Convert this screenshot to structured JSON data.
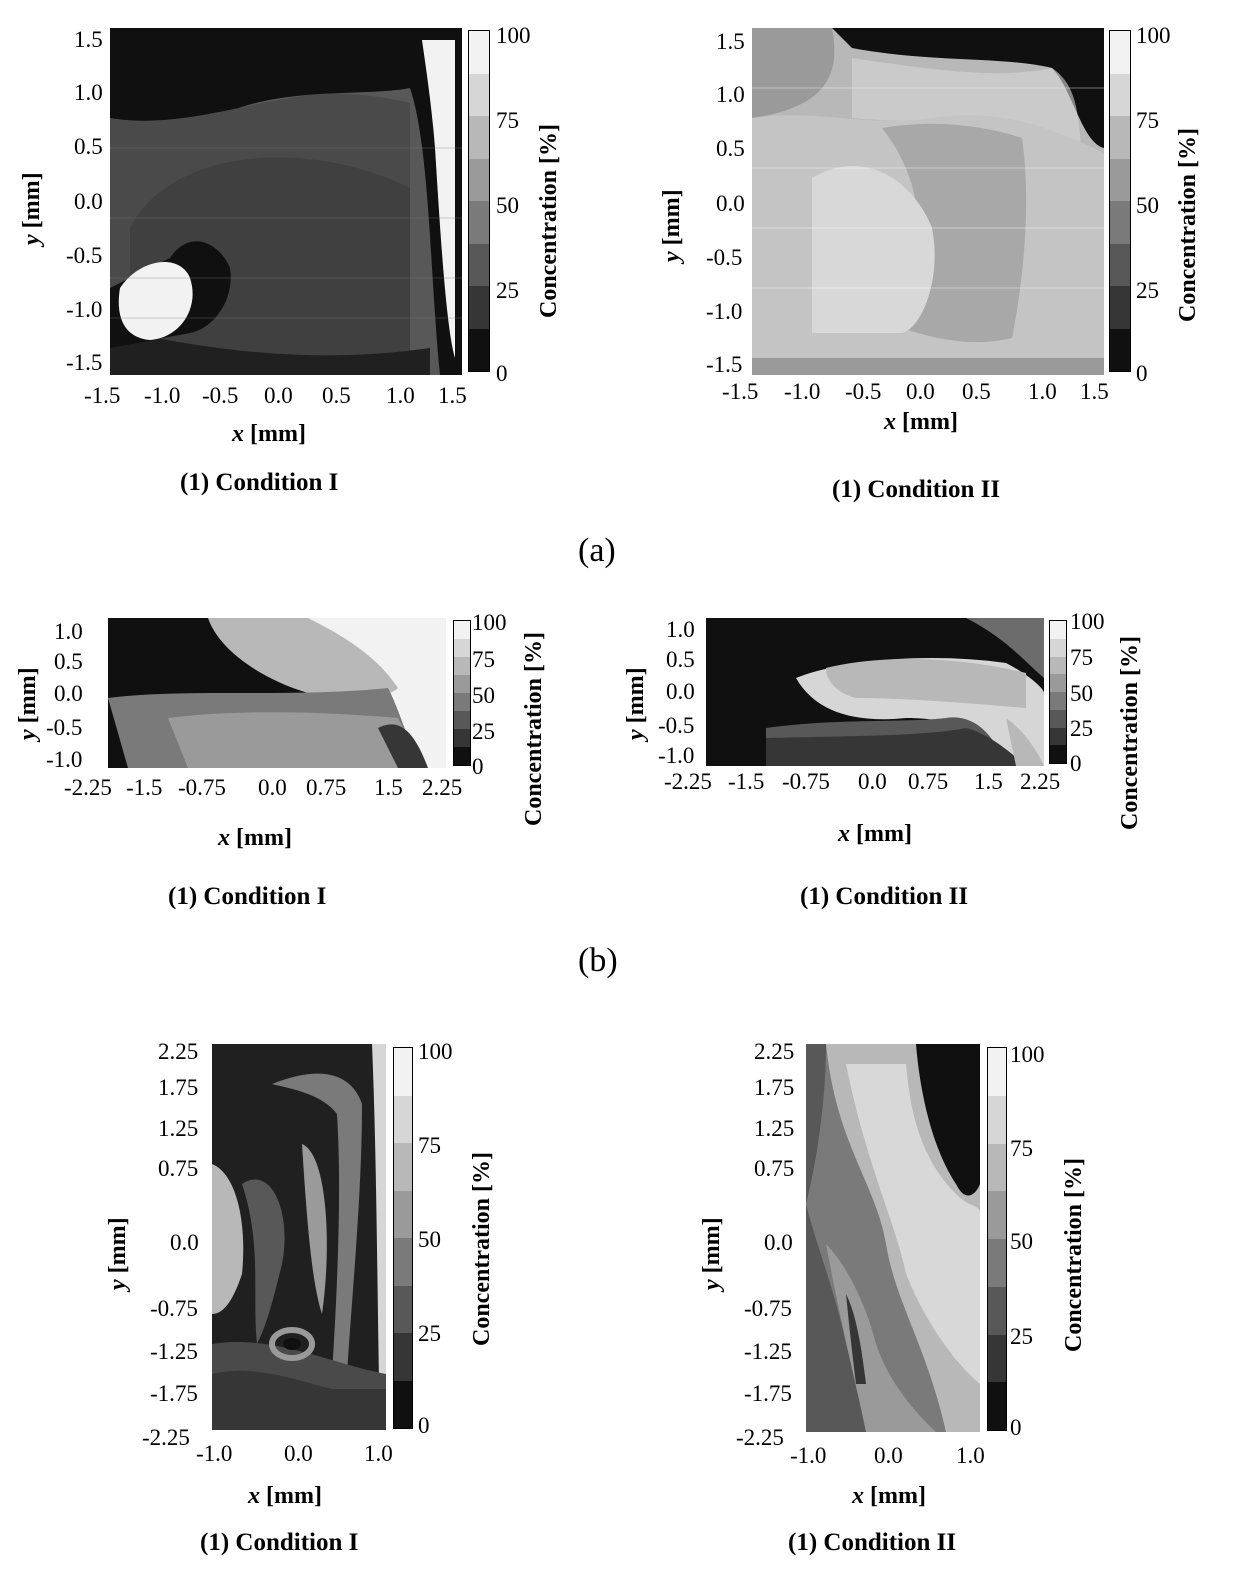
{
  "colors": {
    "scale": [
      "#f2f2f2",
      "#d6d6d6",
      "#b8b8b8",
      "#9a9a9a",
      "#7a7a7a",
      "#585858",
      "#363636",
      "#101010"
    ]
  },
  "colorbar": {
    "label": "Concentration [%]",
    "ticks": [
      "100",
      "75",
      "50",
      "25",
      "0"
    ]
  },
  "axes": {
    "x_label_var": "x",
    "y_label_var": "y",
    "unit": " [mm]"
  },
  "group_a": {
    "label": "(a)",
    "left": {
      "caption": "(1) Condition I",
      "xticks": [
        "-1.5",
        "-1.0",
        "-0.5",
        "0.0",
        "0.5",
        "1.0",
        "1.5"
      ],
      "yticks": [
        "1.5",
        "1.0",
        "0.5",
        "0.0",
        "-0.5",
        "-1.0",
        "-1.5"
      ]
    },
    "right": {
      "caption": "(1) Condition II",
      "xticks": [
        "-1.5",
        "-1.0",
        "-0.5",
        "0.0",
        "0.5",
        "1.0",
        "1.5"
      ],
      "yticks": [
        "1.5",
        "1.0",
        "0.5",
        "0.0",
        "-0.5",
        "-1.0",
        "-1.5"
      ]
    }
  },
  "group_b": {
    "label": "(b)",
    "left": {
      "caption": "(1) Condition I",
      "xticks": [
        "-2.25",
        "-1.5",
        "-0.75",
        "0.0",
        "0.75",
        "1.5",
        "2.25"
      ],
      "yticks": [
        "1.0",
        "0.5",
        "0.0",
        "-0.5",
        "-1.0"
      ]
    },
    "right": {
      "caption": "(1) Condition II",
      "xticks": [
        "-2.25",
        "-1.5",
        "-0.75",
        "0.0",
        "0.75",
        "1.5",
        "2.25"
      ],
      "yticks": [
        "1.0",
        "0.5",
        "0.0",
        "-0.5",
        "-1.0"
      ]
    }
  },
  "group_c": {
    "left": {
      "caption": "(1) Condition I",
      "xticks": [
        "-1.0",
        "0.0",
        "1.0"
      ],
      "yticks": [
        "2.25",
        "1.75",
        "1.25",
        "0.75",
        "0.0",
        "-0.75",
        "-1.25",
        "-1.75",
        "-2.25"
      ]
    },
    "right": {
      "caption": "(1) Condition II",
      "xticks": [
        "-1.0",
        "0.0",
        "1.0"
      ],
      "yticks": [
        "2.25",
        "1.75",
        "1.25",
        "0.75",
        "0.0",
        "-0.75",
        "-1.25",
        "-1.75",
        "-2.25"
      ]
    }
  }
}
